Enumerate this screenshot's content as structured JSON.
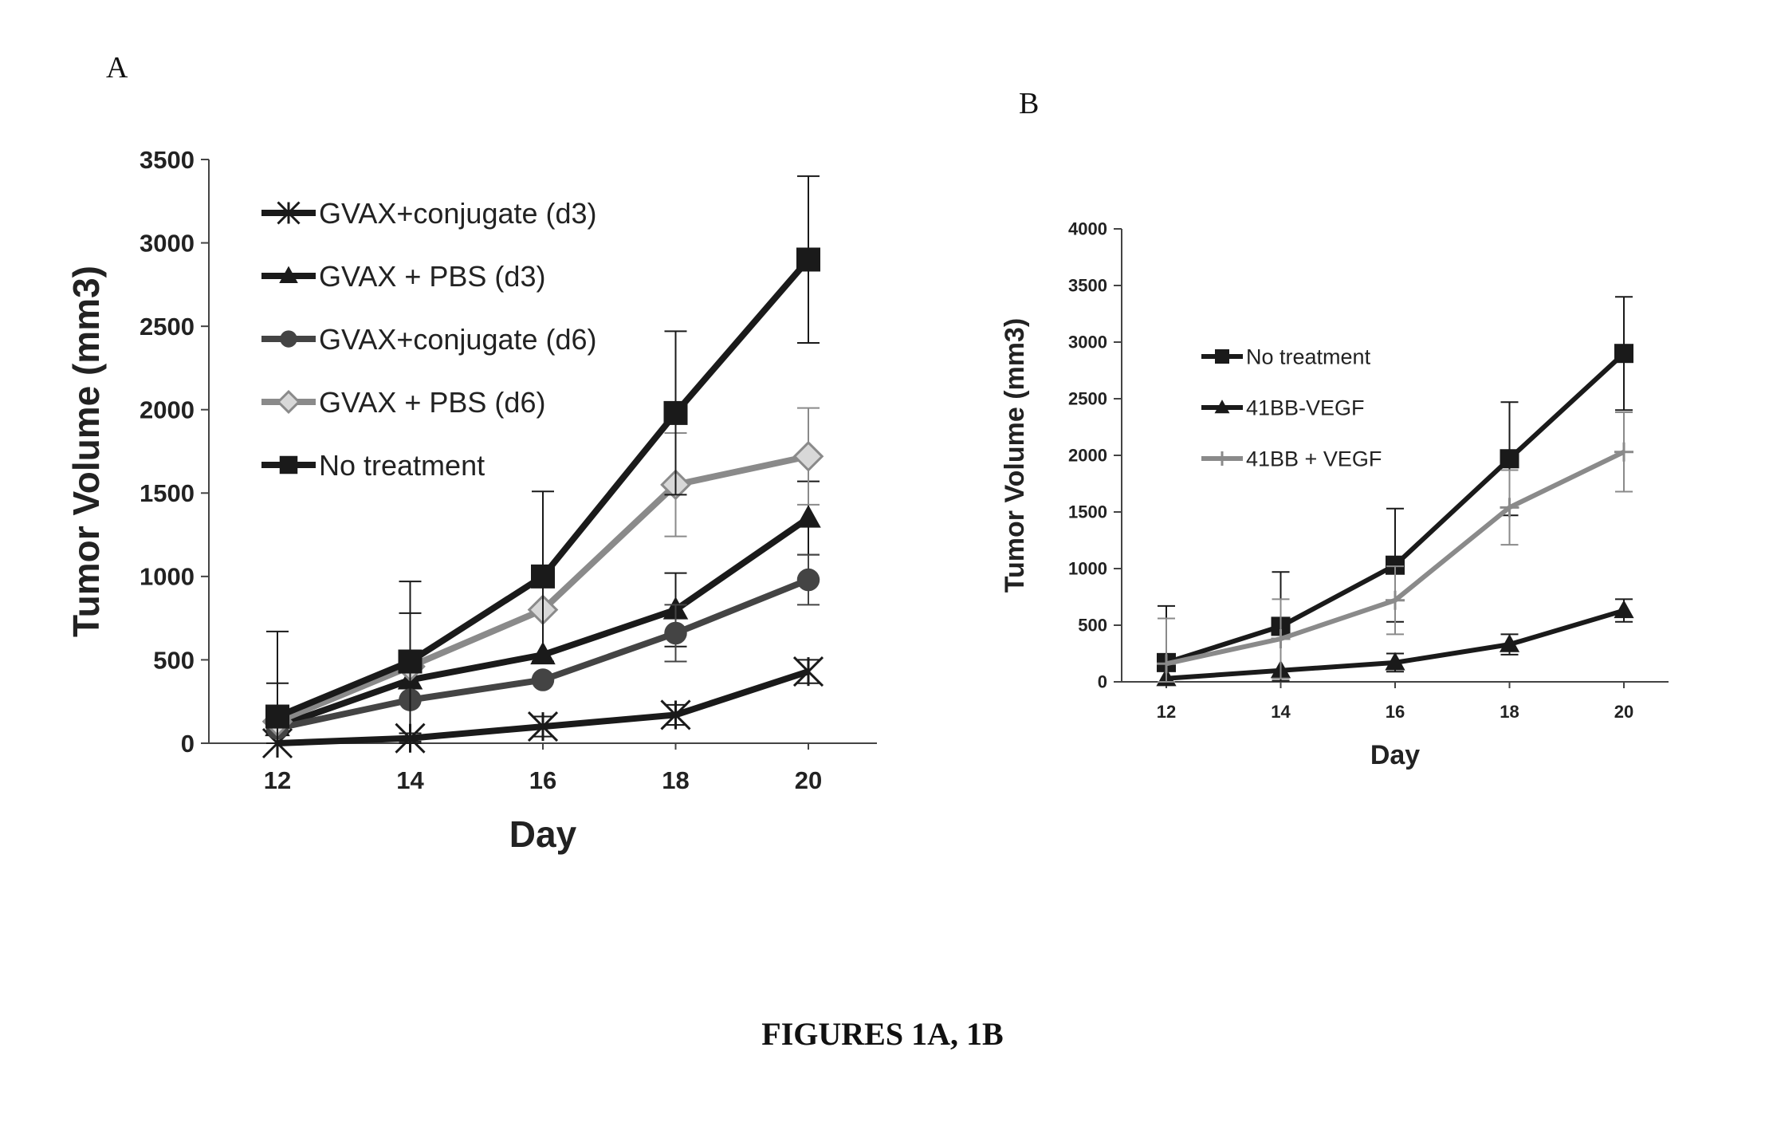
{
  "figure": {
    "caption": "FIGURES 1A, 1B",
    "panel_a_letter": "A",
    "panel_b_letter": "B"
  },
  "chart_data": [
    {
      "panel": "A",
      "type": "line",
      "xlabel": "Day",
      "ylabel": "Tumor Volume (mm3)",
      "x": [
        12,
        14,
        16,
        18,
        20
      ],
      "ylim": [
        0,
        3500
      ],
      "yticks": [
        0,
        500,
        1000,
        1500,
        2000,
        2500,
        3000,
        3500
      ],
      "grid": false,
      "legend_position": "top-left",
      "series": [
        {
          "name": "GVAX+conjugate (d3)",
          "marker": "asterisk",
          "color": "#1a1a1a",
          "values": [
            0,
            30,
            100,
            170,
            430
          ],
          "errors": [
            0,
            30,
            60,
            60,
            70
          ]
        },
        {
          "name": "GVAX + PBS (d3)",
          "marker": "triangle",
          "color": "#1a1a1a",
          "values": [
            100,
            380,
            530,
            800,
            1350
          ],
          "errors": [
            260,
            400,
            0,
            220,
            220
          ]
        },
        {
          "name": "GVAX+conjugate (d6)",
          "marker": "circle",
          "color": "#444444",
          "values": [
            90,
            260,
            380,
            660,
            980
          ],
          "errors": [
            0,
            0,
            0,
            170,
            150
          ]
        },
        {
          "name": "GVAX + PBS (d6)",
          "marker": "diamond",
          "color": "#8a8a8a",
          "values": [
            130,
            460,
            800,
            1550,
            1720
          ],
          "errors": [
            0,
            0,
            0,
            310,
            290
          ]
        },
        {
          "name": "No treatment",
          "marker": "square",
          "color": "#1a1a1a",
          "values": [
            160,
            490,
            1000,
            1980,
            2900
          ],
          "errors": [
            510,
            480,
            510,
            490,
            500
          ]
        }
      ]
    },
    {
      "panel": "B",
      "type": "line",
      "xlabel": "Day",
      "ylabel": "Tumor Volume (mm3)",
      "x": [
        12,
        14,
        16,
        18,
        20
      ],
      "ylim": [
        0,
        4000
      ],
      "yticks": [
        0,
        500,
        1000,
        1500,
        2000,
        2500,
        3000,
        3500,
        4000
      ],
      "grid": false,
      "legend_position": "top-left",
      "series": [
        {
          "name": "No treatment",
          "marker": "square",
          "color": "#1a1a1a",
          "values": [
            170,
            490,
            1030,
            1970,
            2900
          ],
          "errors": [
            500,
            480,
            500,
            500,
            500
          ]
        },
        {
          "name": "41BB-VEGF",
          "marker": "triangle",
          "color": "#1a1a1a",
          "values": [
            30,
            100,
            170,
            330,
            630
          ],
          "errors": [
            0,
            0,
            80,
            90,
            100
          ]
        },
        {
          "name": "41BB + VEGF",
          "marker": "plus",
          "color": "#8a8a8a",
          "values": [
            160,
            380,
            720,
            1540,
            2030
          ],
          "errors": [
            400,
            350,
            300,
            330,
            350
          ]
        }
      ]
    }
  ]
}
